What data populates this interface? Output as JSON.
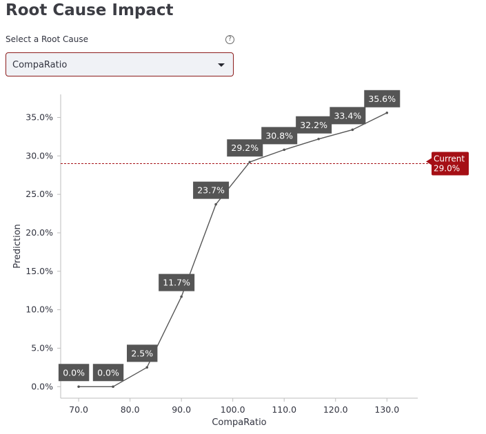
{
  "header": {
    "title": "Root Cause Impact"
  },
  "selector": {
    "label": "Select a Root Cause",
    "help_icon": "question-circle-icon",
    "selected": "CompaRatio"
  },
  "chart_data": {
    "type": "line",
    "xlabel": "CompaRatio",
    "ylabel": "Prediction",
    "xlim": [
      66.5,
      136
    ],
    "ylim": [
      -1.5,
      38
    ],
    "x_ticks": [
      70,
      80,
      90,
      100,
      110,
      120,
      130
    ],
    "x_tick_labels": [
      "70.0",
      "80.0",
      "90.0",
      "100.0",
      "110.0",
      "120.0",
      "130.0"
    ],
    "y_ticks": [
      0,
      5,
      10,
      15,
      20,
      25,
      30,
      35
    ],
    "y_tick_labels": [
      "0.0%",
      "5.0%",
      "10.0%",
      "15.0%",
      "20.0%",
      "25.0%",
      "30.0%",
      "35.0%"
    ],
    "series": [
      {
        "name": "Prediction",
        "x": [
          70,
          76.7,
          83.3,
          90,
          96.7,
          103.3,
          110,
          116.7,
          123.3,
          130
        ],
        "values": [
          0.0,
          0.0,
          2.5,
          11.7,
          23.7,
          29.2,
          30.8,
          32.2,
          33.4,
          35.6
        ],
        "labels": [
          "0.0%",
          "0.0%",
          "2.5%",
          "11.7%",
          "23.7%",
          "29.2%",
          "30.8%",
          "32.2%",
          "33.4%",
          "35.6%"
        ]
      }
    ],
    "reference_line": {
      "value": 29.0,
      "label_title": "Current",
      "label_value": "29.0%",
      "color": "#a50f15"
    },
    "colors": {
      "line": "#555555",
      "label_bg": "#555555",
      "label_text": "#ffffff"
    }
  }
}
